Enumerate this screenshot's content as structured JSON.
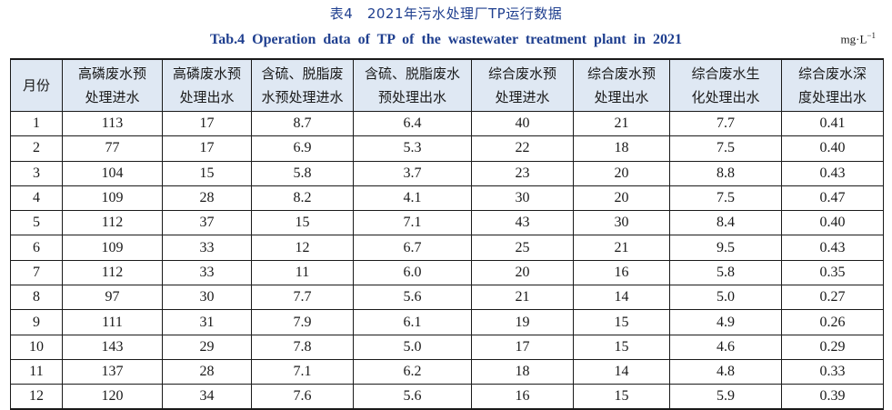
{
  "title_cn": "表4　2021年污水处理厂TP运行数据",
  "title_en": "Tab.4   Operation data of TP of the wastewater treatment plant in 2021",
  "unit": {
    "base": "mg·L",
    "exp": "−1"
  },
  "headers": [
    {
      "line1": "月份",
      "line2": ""
    },
    {
      "line1": "高磷废水预",
      "line2": "处理进水"
    },
    {
      "line1": "高磷废水预",
      "line2": "处理出水"
    },
    {
      "line1": "含硫、脱脂废",
      "line2": "水预处理进水"
    },
    {
      "line1": "含硫、脱脂废水",
      "line2": "预处理出水"
    },
    {
      "line1": "综合废水预",
      "line2": "处理进水"
    },
    {
      "line1": "综合废水预",
      "line2": "处理出水"
    },
    {
      "line1": "综合废水生",
      "line2": "化处理出水"
    },
    {
      "line1": "综合废水深",
      "line2": "度处理出水"
    }
  ],
  "rows": [
    [
      "1",
      "113",
      "17",
      "8.7",
      "6.4",
      "40",
      "21",
      "7.7",
      "0.41"
    ],
    [
      "2",
      "77",
      "17",
      "6.9",
      "5.3",
      "22",
      "18",
      "7.5",
      "0.40"
    ],
    [
      "3",
      "104",
      "15",
      "5.8",
      "3.7",
      "23",
      "20",
      "8.8",
      "0.43"
    ],
    [
      "4",
      "109",
      "28",
      "8.2",
      "4.1",
      "30",
      "20",
      "7.5",
      "0.47"
    ],
    [
      "5",
      "112",
      "37",
      "15",
      "7.1",
      "43",
      "30",
      "8.4",
      "0.40"
    ],
    [
      "6",
      "109",
      "33",
      "12",
      "6.7",
      "25",
      "21",
      "9.5",
      "0.43"
    ],
    [
      "7",
      "112",
      "33",
      "11",
      "6.0",
      "20",
      "16",
      "5.8",
      "0.35"
    ],
    [
      "8",
      "97",
      "30",
      "7.7",
      "5.6",
      "21",
      "14",
      "5.0",
      "0.27"
    ],
    [
      "9",
      "111",
      "31",
      "7.9",
      "6.1",
      "19",
      "15",
      "4.9",
      "0.26"
    ],
    [
      "10",
      "143",
      "29",
      "7.8",
      "5.0",
      "17",
      "15",
      "4.6",
      "0.29"
    ],
    [
      "11",
      "137",
      "28",
      "7.1",
      "6.2",
      "18",
      "14",
      "4.8",
      "0.33"
    ],
    [
      "12",
      "120",
      "34",
      "7.6",
      "5.6",
      "16",
      "15",
      "5.9",
      "0.39"
    ]
  ]
}
